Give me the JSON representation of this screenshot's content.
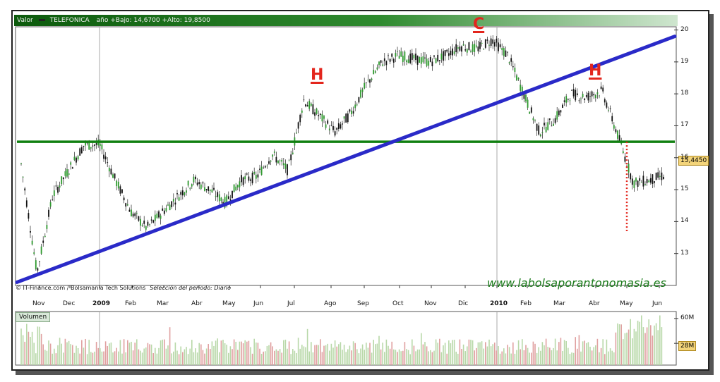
{
  "header": {
    "label_valor": "Valor",
    "symbol": "TELEFONICA",
    "range_text": "año +Bajo: 14,6700 +Alto: 19,8500"
  },
  "credit": {
    "source": "© IT-Finance.com / Bolsamania Tech Solutions",
    "period": "Selección del período: Diario"
  },
  "watermark": "www.labolsaporantonomasia.es",
  "volume_label": "Volumen",
  "last_price_tag": "15,4450",
  "last_volume_tag": "28M",
  "annotations": [
    "H",
    "C",
    "H"
  ],
  "colors": {
    "header_green": "#2f8a2f",
    "trendline": "#2a2ac8",
    "support": "#118011",
    "annotation": "#e3261d",
    "candle_up": "#2e9a2e",
    "candle_down": "#111111",
    "volume_bar": "#b8d8a8"
  },
  "chart_data": [
    {
      "type": "candlestick",
      "title": "TELEFONICA",
      "x_ticks": [
        "Nov",
        "Dec",
        "2009",
        "Feb",
        "Mar",
        "Abr",
        "May",
        "Jun",
        "Jul",
        "Ago",
        "Sep",
        "Oct",
        "Nov",
        "Dic",
        "2010",
        "Feb",
        "Mar",
        "Abr",
        "May",
        "Jun"
      ],
      "y_ticks": [
        13,
        14,
        15,
        16,
        17,
        18,
        19,
        20
      ],
      "ylim": [
        12.0,
        20.1
      ],
      "close_series": {
        "name": "TELEFONICA",
        "points": [
          [
            "Nov",
            15.8
          ],
          [
            "Nov",
            12.4
          ],
          [
            "Nov",
            14.8
          ],
          [
            "Dec",
            15.6
          ],
          [
            "Dec",
            16.4
          ],
          [
            "2009",
            16.4
          ],
          [
            "2009",
            15.3
          ],
          [
            "Feb",
            14.3
          ],
          [
            "Feb",
            13.8
          ],
          [
            "Mar",
            14.3
          ],
          [
            "Mar",
            14.8
          ],
          [
            "Abr",
            15.3
          ],
          [
            "May",
            15.0
          ],
          [
            "May",
            14.6
          ],
          [
            "Jun",
            15.3
          ],
          [
            "Jun",
            15.4
          ],
          [
            "Jul",
            16.1
          ],
          [
            "Jul",
            15.6
          ],
          [
            "Ago",
            17.8
          ],
          [
            "Ago",
            17.3
          ],
          [
            "Ago",
            16.8
          ],
          [
            "Sep",
            17.4
          ],
          [
            "Sep",
            18.3
          ],
          [
            "Sep",
            19.0
          ],
          [
            "Oct",
            19.2
          ],
          [
            "Oct",
            19.1
          ],
          [
            "Nov",
            19.0
          ],
          [
            "Nov",
            19.2
          ],
          [
            "Dic",
            19.5
          ],
          [
            "Dic",
            19.4
          ],
          [
            "2010",
            19.7
          ],
          [
            "2010",
            19.2
          ],
          [
            "Feb",
            18.0
          ],
          [
            "Feb",
            16.8
          ],
          [
            "Mar",
            17.2
          ],
          [
            "Mar",
            18.0
          ],
          [
            "Abr",
            17.9
          ],
          [
            "Abr",
            18.1
          ],
          [
            "May",
            16.7
          ],
          [
            "May",
            15.2
          ],
          [
            "Jun",
            15.3
          ],
          [
            "Jun",
            15.45
          ]
        ]
      },
      "support_level": 16.5,
      "trendline": [
        [
          "Nov",
          12.1
        ],
        [
          "Jun",
          19.8
        ]
      ],
      "drop_marker": {
        "x": "May",
        "from": 16.5,
        "to": 13.7
      },
      "annotations": [
        {
          "text": "H",
          "x": "Ago",
          "y": 18.2
        },
        {
          "text": "C",
          "x": "2010",
          "y": 19.9
        },
        {
          "text": "H",
          "x": "Abr",
          "y": 18.3
        }
      ]
    },
    {
      "type": "bar",
      "title": "Volumen",
      "y_ticks": [
        "60M",
        "28M"
      ],
      "unit": "M",
      "peak_values_M": [
        60,
        64,
        62,
        58
      ]
    }
  ]
}
